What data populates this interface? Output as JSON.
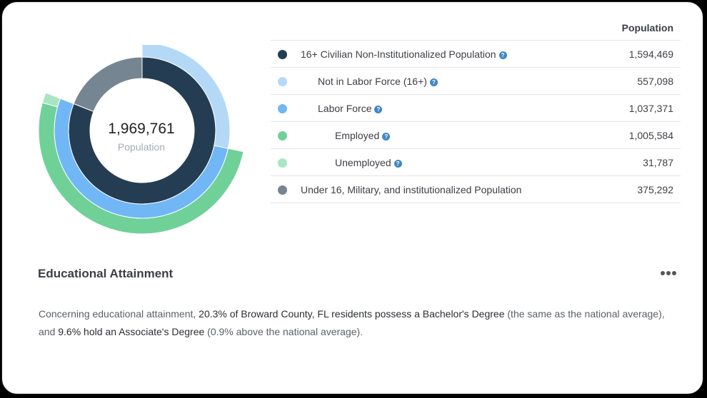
{
  "chart_data": {
    "type": "sunburst",
    "center_value": "1,969,761",
    "center_label": "Population",
    "column_header": "Population",
    "rows": [
      {
        "label": "16+ Civilian Non-Institutionalized Population",
        "value": 1594469,
        "display": "1,594,469",
        "color": "#253d52",
        "level": 0,
        "help": true
      },
      {
        "label": "Not in Labor Force (16+)",
        "value": 557098,
        "display": "557,098",
        "color": "#b3d9f7",
        "level": 1,
        "help": true
      },
      {
        "label": "Labor Force",
        "value": 1037371,
        "display": "1,037,371",
        "color": "#71b7f5",
        "level": 1,
        "help": true
      },
      {
        "label": "Employed",
        "value": 1005584,
        "display": "1,005,584",
        "color": "#6fd198",
        "level": 2,
        "help": true
      },
      {
        "label": "Unemployed",
        "value": 31787,
        "display": "31,787",
        "color": "#a7e6c1",
        "level": 2,
        "help": true
      },
      {
        "label": "Under 16, Military, and institutionalized Population",
        "value": 375292,
        "display": "375,292",
        "color": "#758592",
        "level": 0,
        "help": false
      }
    ]
  },
  "section": {
    "title": "Educational Attainment",
    "text_1": "Concerning educational attainment, ",
    "bold_1": "20.3% of Broward County, FL residents possess a Bachelor's Degree",
    "text_2": " (the same as the national average), and ",
    "bold_2": "9.6% hold an Associate's Degree",
    "text_3": " (0.9% above the national average)."
  }
}
